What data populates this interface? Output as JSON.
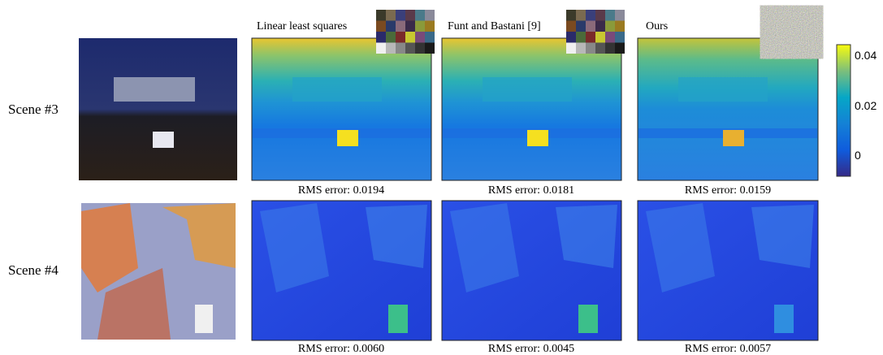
{
  "columns": [
    "Linear least squares",
    "Funt and Bastani [9]",
    "Ours"
  ],
  "rows": [
    {
      "label": "Scene #3",
      "errors": [
        "RMS error:  0.0194",
        "RMS error: 0.0181",
        "RMS error: 0.0159"
      ]
    },
    {
      "label": "Scene #4",
      "errors": [
        "RMS error: 0.0060",
        "RMS error: 0.0045",
        "RMS error: 0.0057"
      ]
    }
  ],
  "colorbar": {
    "ticks": [
      "0.04",
      "0.02",
      "0"
    ]
  }
}
